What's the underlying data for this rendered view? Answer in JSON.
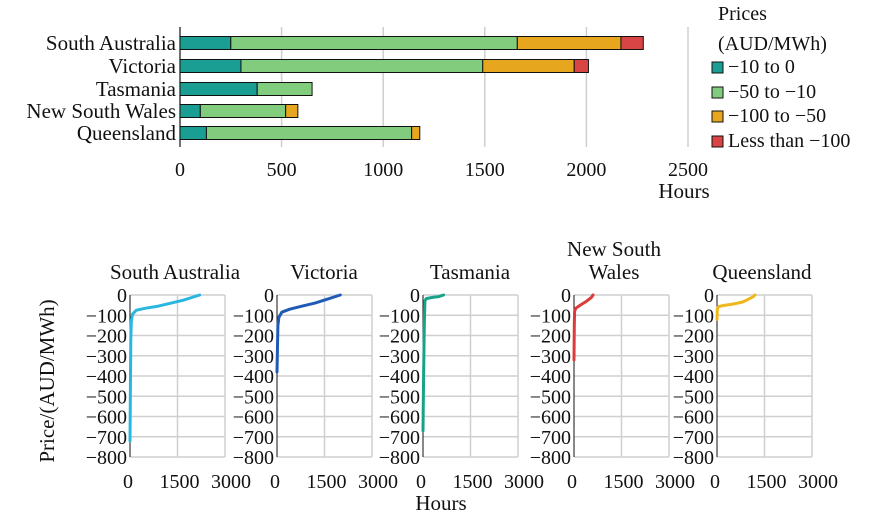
{
  "chart_data": [
    {
      "type": "bar",
      "stacked": true,
      "orientation": "horizontal",
      "categories": [
        "South Australia",
        "Victoria",
        "Tasmania",
        "New South Wales",
        "Queensland"
      ],
      "xlabel": "Hours",
      "xlim": [
        0,
        2500
      ],
      "xticks": [
        "0",
        "500",
        "1000",
        "1500",
        "2000",
        "2500"
      ],
      "grid": true,
      "legend": {
        "title": "Prices (AUD/MWh)",
        "title_lines": [
          "Prices",
          "(AUD/MWh)"
        ],
        "placement": "right"
      },
      "series": [
        {
          "name": "−10 to 0",
          "color": "#1a9e93",
          "values": [
            250,
            300,
            380,
            100,
            130
          ]
        },
        {
          "name": "−50 to −10",
          "color": "#82cc7d",
          "values": [
            1410,
            1190,
            270,
            420,
            1010
          ]
        },
        {
          "name": "−100 to −50",
          "color": "#e6a61e",
          "values": [
            510,
            450,
            0,
            60,
            40
          ]
        },
        {
          "name": "Less than −100",
          "color": "#d94545",
          "values": [
            110,
            70,
            0,
            0,
            0
          ]
        }
      ]
    },
    {
      "type": "line",
      "panels": [
        {
          "title": "South Australia",
          "color": "#29b6e0",
          "points": [
            [
              0,
              -720
            ],
            [
              15,
              -400
            ],
            [
              25,
              -220
            ],
            [
              40,
              -130
            ],
            [
              80,
              -95
            ],
            [
              200,
              -75
            ],
            [
              500,
              -65
            ],
            [
              900,
              -55
            ],
            [
              1300,
              -40
            ],
            [
              1700,
              -25
            ],
            [
              2000,
              -10
            ],
            [
              2200,
              0
            ]
          ]
        },
        {
          "title": "Victoria",
          "color": "#1f5bb5",
          "points": [
            [
              0,
              -380
            ],
            [
              15,
              -250
            ],
            [
              30,
              -150
            ],
            [
              60,
              -110
            ],
            [
              150,
              -85
            ],
            [
              400,
              -70
            ],
            [
              800,
              -55
            ],
            [
              1200,
              -40
            ],
            [
              1600,
              -20
            ],
            [
              1900,
              -5
            ],
            [
              2000,
              0
            ]
          ]
        },
        {
          "title": "Tasmania",
          "color": "#17a38a",
          "points": [
            [
              0,
              -670
            ],
            [
              20,
              -400
            ],
            [
              40,
              -150
            ],
            [
              60,
              -30
            ],
            [
              100,
              -18
            ],
            [
              300,
              -12
            ],
            [
              500,
              -8
            ],
            [
              650,
              0
            ]
          ]
        },
        {
          "title_lines": [
            "New South",
            "Wales"
          ],
          "title": "New South Wales",
          "color": "#dc3b3b",
          "points": [
            [
              0,
              -320
            ],
            [
              10,
              -150
            ],
            [
              20,
              -80
            ],
            [
              60,
              -65
            ],
            [
              200,
              -50
            ],
            [
              400,
              -30
            ],
            [
              550,
              -12
            ],
            [
              600,
              0
            ]
          ]
        },
        {
          "title": "Queensland",
          "color": "#f0b71d",
          "points": [
            [
              0,
              -120
            ],
            [
              10,
              -70
            ],
            [
              40,
              -58
            ],
            [
              200,
              -52
            ],
            [
              500,
              -45
            ],
            [
              800,
              -35
            ],
            [
              1000,
              -20
            ],
            [
              1150,
              -8
            ],
            [
              1200,
              0
            ]
          ]
        }
      ],
      "ylabel": "Price/(AUD/MWh)",
      "xlabel": "Hours",
      "ylim": [
        -800,
        0
      ],
      "xlim": [
        0,
        3000
      ],
      "yticks": [
        "0",
        "−100",
        "−200",
        "−300",
        "−400",
        "−500",
        "−600",
        "−700",
        "−800"
      ],
      "xticks": [
        "0",
        "1500",
        "3000"
      ],
      "grid": true
    }
  ]
}
